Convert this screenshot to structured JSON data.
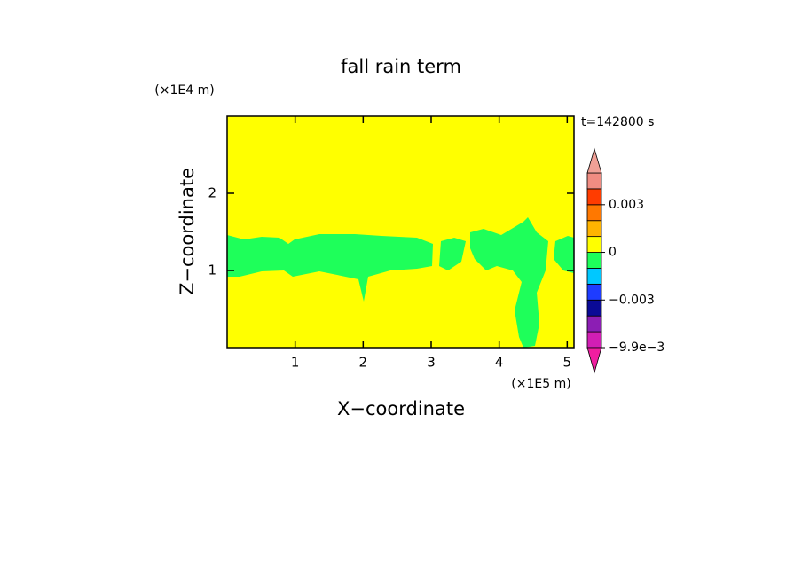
{
  "chart_data": {
    "type": "contour",
    "title": "fall rain term",
    "x_label": "X−coordinate",
    "y_label": "Z−coordinate",
    "x_unit": "(×1E5 m)",
    "y_unit": "(×1E4 m)",
    "time_label": "t=142800 s",
    "xlim": [
      0,
      5.1
    ],
    "xticks": [
      1,
      2,
      3,
      4,
      5
    ],
    "ylim": [
      0,
      3
    ],
    "yticks": [
      1,
      2
    ],
    "colorbar": {
      "levels": [
        -0.0099,
        -0.006,
        -0.004,
        -0.003,
        -0.002,
        -0.001,
        0,
        0.001,
        0.002,
        0.003,
        0.004,
        0.006
      ],
      "colors": [
        "#d21eb4",
        "#8c1eb4",
        "#0a0a96",
        "#1e3cff",
        "#00c8ff",
        "#1eff5a",
        "#ffff00",
        "#ffb400",
        "#ff7800",
        "#ff3c00",
        "#f08c82"
      ],
      "under_color": "#f01ea0",
      "over_color": "#f0a096",
      "ticks": [
        {
          "value": -0.0099,
          "label": "−9.9e−3"
        },
        {
          "value": -0.003,
          "label": "−0.003"
        },
        0,
        0.003
      ]
    }
  }
}
